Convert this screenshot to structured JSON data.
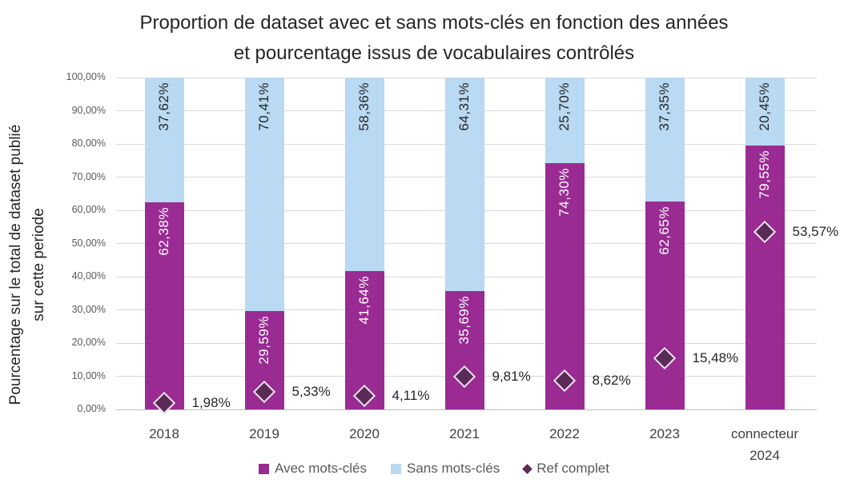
{
  "title": {
    "line1": "Proportion de dataset avec et sans mots-clés en fonction des années",
    "line2": "et pourcentage issus de vocabulaires contrôlés"
  },
  "y_axis": {
    "title_line1": "Pourcentage sur le total de dataset publié",
    "title_line2": "sur cette periode"
  },
  "colors": {
    "avec": "#992B93",
    "sans": "#BAD9F2",
    "ref_fill": "#5B2B58",
    "ref_border": "#F2E4F1",
    "gridline": "#D9D9D9",
    "axis_line": "#BFBFBF",
    "tick_text": "#595959",
    "title_text": "#262626"
  },
  "chart_data": {
    "type": "bar",
    "stacked": true,
    "title": "Proportion de dataset avec et sans mots-clés en fonction des années et pourcentage issus de vocabulaires contrôlés",
    "xlabel": "",
    "ylabel": "Pourcentage sur le total de dataset publié sur cette periode",
    "ylim": [
      0,
      100
    ],
    "grid": true,
    "legend_position": "bottom",
    "yticks": [
      {
        "value": 0,
        "label": "0,00%"
      },
      {
        "value": 10,
        "label": "10,00%"
      },
      {
        "value": 20,
        "label": "20,00%"
      },
      {
        "value": 30,
        "label": "30,00%"
      },
      {
        "value": 40,
        "label": "40,00%"
      },
      {
        "value": 50,
        "label": "50,00%"
      },
      {
        "value": 60,
        "label": "60,00%"
      },
      {
        "value": 70,
        "label": "70,00%"
      },
      {
        "value": 80,
        "label": "80,00%"
      },
      {
        "value": 90,
        "label": "90,00%"
      },
      {
        "value": 100,
        "label": "100,00%"
      }
    ],
    "categories": [
      "2018",
      "2019",
      "2020",
      "2021",
      "2022",
      "2023",
      "connecteur\n2024"
    ],
    "series": [
      {
        "name": "Avec mots-clés",
        "type": "bar",
        "color": "#992B93",
        "label_color": "#FFFFFF",
        "values": [
          62.38,
          29.59,
          41.64,
          35.69,
          74.3,
          62.65,
          79.55
        ],
        "labels": [
          "62,38%",
          "29,59%",
          "41,64%",
          "35,69%",
          "74,30%",
          "62,65%",
          "79,55%"
        ]
      },
      {
        "name": "Sans mots-clés",
        "type": "bar",
        "color": "#BAD9F2",
        "label_color": "#262626",
        "values": [
          37.62,
          70.41,
          58.36,
          64.31,
          25.7,
          37.35,
          20.45
        ],
        "labels": [
          "37,62%",
          "70,41%",
          "58,36%",
          "64,31%",
          "25,70%",
          "37,35%",
          "20,45%"
        ]
      },
      {
        "name": "Ref complet",
        "type": "diamond",
        "color": "#5B2B58",
        "border_color": "#F2E4F1",
        "values": [
          1.98,
          5.33,
          4.11,
          9.81,
          8.62,
          15.48,
          53.57
        ],
        "labels": [
          "1,98%",
          "5,33%",
          "4,11%",
          "9,81%",
          "8,62%",
          "15,48%",
          "53,57%"
        ]
      }
    ]
  }
}
